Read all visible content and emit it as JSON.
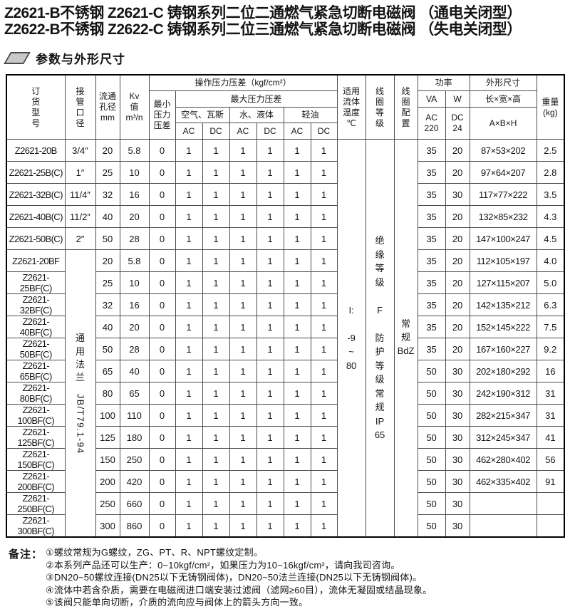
{
  "title": {
    "line1": "Z2621-B不锈钢 Z2621-C 铸钢系列二位二通燃气紧急切断电磁阀 （通电关闭型）",
    "line2": "Z2622-B不锈钢 Z2622-C 铸钢系列二位三通燃气紧急切断电磁阀 （失电关闭型）"
  },
  "section": {
    "title": "参数与外形尺寸"
  },
  "table": {
    "headers": {
      "model": "订\n货\n型\n号",
      "pipe": "接\n管\n口\n径",
      "bore": "流通\n孔径\nmm",
      "kv": "Kv\n值\nm³/n",
      "op_pressure": "操作压力压差（kgf/cm²）",
      "min_dp": "最小\n压力\n压差",
      "max_dp": "最大压力压差",
      "air": "空气、瓦斯",
      "water": "水、液体",
      "oil": "轻油",
      "ac": "AC",
      "dc": "DC",
      "temp": "适用\n流体\n温度\n℃",
      "coil_grade": "线\n圈\n等\n级",
      "coil_config": "线\n圈\n配\n置",
      "power": "功率",
      "va": "VA",
      "w": "W",
      "ac220": "AC\n220",
      "dc24": "DC\n24",
      "dims": "外形尺寸",
      "dims_sub": "长×宽×高",
      "dims_formula": "A×B×H",
      "weight": "重量\n(kg)"
    },
    "merged": {
      "flange_cn": "通\n用\n法\n兰",
      "flange_std": "JB/T79.1-94",
      "temp": "I:\n\n-9\n~\n80",
      "grade": "绝\n缘\n等\n级\n\nF\n\n防\n护\n等\n级\n常\n规\nIP\n65",
      "config": "常\n规\nBdZ"
    },
    "rows": [
      [
        "Z2621-20B",
        "3/4″",
        "20",
        "5.8",
        "0",
        "1",
        "1",
        "1",
        "1",
        "1",
        "1",
        "35",
        "20",
        "87×53×202",
        "2.5"
      ],
      [
        "Z2621-25B(C)",
        "1″",
        "25",
        "10",
        "0",
        "1",
        "1",
        "1",
        "1",
        "1",
        "1",
        "35",
        "20",
        "97×64×207",
        "2.8"
      ],
      [
        "Z2621-32B(C)",
        "11/4″",
        "32",
        "16",
        "0",
        "1",
        "1",
        "1",
        "1",
        "1",
        "1",
        "35",
        "30",
        "117×77×222",
        "3.5"
      ],
      [
        "Z2621-40B(C)",
        "11/2″",
        "40",
        "20",
        "0",
        "1",
        "1",
        "1",
        "1",
        "1",
        "1",
        "35",
        "20",
        "132×85×232",
        "4.3"
      ],
      [
        "Z2621-50B(C)",
        "2″",
        "50",
        "28",
        "0",
        "1",
        "1",
        "1",
        "1",
        "1",
        "1",
        "35",
        "20",
        "147×100×247",
        "4.5"
      ],
      [
        "Z2621-20BF",
        "",
        "20",
        "5.8",
        "0",
        "1",
        "1",
        "1",
        "1",
        "1",
        "1",
        "35",
        "20",
        "112×105×197",
        "4.0"
      ],
      [
        "Z2621-25BF(C)",
        "",
        "25",
        "10",
        "0",
        "1",
        "1",
        "1",
        "1",
        "1",
        "1",
        "35",
        "20",
        "127×115×207",
        "5.0"
      ],
      [
        "Z2621-32BF(C)",
        "",
        "32",
        "16",
        "0",
        "1",
        "1",
        "1",
        "1",
        "1",
        "1",
        "35",
        "20",
        "142×135×212",
        "6.3"
      ],
      [
        "Z2621-40BF(C)",
        "",
        "40",
        "20",
        "0",
        "1",
        "1",
        "1",
        "1",
        "1",
        "1",
        "35",
        "20",
        "152×145×222",
        "7.5"
      ],
      [
        "Z2621-50BF(C)",
        "",
        "50",
        "28",
        "0",
        "1",
        "1",
        "1",
        "1",
        "1",
        "1",
        "35",
        "20",
        "167×160×227",
        "9.2"
      ],
      [
        "Z2621-65BF(C)",
        "",
        "65",
        "40",
        "0",
        "1",
        "1",
        "1",
        "1",
        "1",
        "1",
        "50",
        "30",
        "202×180×292",
        "16"
      ],
      [
        "Z2621-80BF(C)",
        "",
        "80",
        "65",
        "0",
        "1",
        "1",
        "1",
        "1",
        "1",
        "1",
        "50",
        "30",
        "242×190×312",
        "31"
      ],
      [
        "Z2621-100BF(C)",
        "",
        "100",
        "110",
        "0",
        "1",
        "1",
        "1",
        "1",
        "1",
        "1",
        "50",
        "30",
        "282×215×347",
        "31"
      ],
      [
        "Z2621-125BF(C)",
        "",
        "125",
        "180",
        "0",
        "1",
        "1",
        "1",
        "1",
        "1",
        "1",
        "50",
        "30",
        "312×245×347",
        "41"
      ],
      [
        "Z2621-150BF(C)",
        "",
        "150",
        "250",
        "0",
        "1",
        "1",
        "1",
        "1",
        "1",
        "1",
        "50",
        "30",
        "462×280×402",
        "56"
      ],
      [
        "Z2621-200BF(C)",
        "",
        "200",
        "420",
        "0",
        "1",
        "1",
        "1",
        "1",
        "1",
        "1",
        "50",
        "30",
        "462×335×402",
        "91"
      ],
      [
        "Z2621-250BF(C)",
        "",
        "250",
        "660",
        "0",
        "1",
        "1",
        "1",
        "1",
        "1",
        "1",
        "50",
        "30",
        "",
        ""
      ],
      [
        "Z2621-300BF(C)",
        "",
        "300",
        "860",
        "0",
        "1",
        "1",
        "1",
        "1",
        "1",
        "1",
        "50",
        "30",
        "",
        ""
      ]
    ]
  },
  "notes": {
    "label": "备注：",
    "items": [
      "①螺纹常规为G螺纹，ZG、PT、R、NPT螺纹定制。",
      "②本系列产品还可以生产：0~10kgf/cm²，如果压力为10~16kgf/cm²，请向我司咨询。",
      "③DN20~50螺纹连接(DN25以下无铸钢阀体)，DN20~50法兰连接(DN25以下无铸钢阀体)。",
      "④流体中若含杂质，需要在电磁阀进口端安装过滤阀（滤网≥60目），流体无凝固或结晶现象。",
      "⑤该阀只能单向切断，介质的流向应与阀体上的箭头方向一致。"
    ]
  }
}
